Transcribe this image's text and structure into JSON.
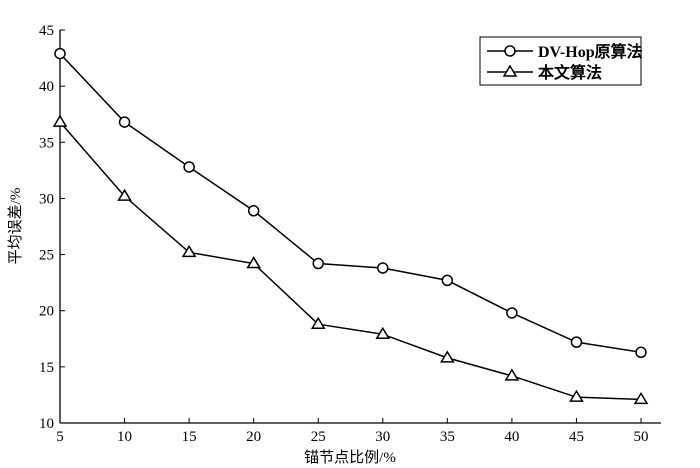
{
  "chart_data": {
    "type": "line",
    "title": "",
    "xlabel": "锚节点比例/%",
    "ylabel": "平均误差/%",
    "x": [
      5,
      10,
      15,
      20,
      25,
      30,
      35,
      40,
      45,
      50
    ],
    "xlim": [
      5,
      50
    ],
    "ylim": [
      10,
      45
    ],
    "xticks": [
      5,
      10,
      15,
      20,
      25,
      30,
      35,
      40,
      45,
      50
    ],
    "yticks": [
      10,
      15,
      20,
      25,
      30,
      35,
      40,
      45
    ],
    "grid": false,
    "legend_position": "top-right",
    "series": [
      {
        "name": "DV-Hop原算法",
        "marker": "circle",
        "values": [
          42.9,
          36.8,
          32.8,
          28.9,
          24.2,
          23.8,
          22.7,
          19.8,
          17.2,
          16.3
        ]
      },
      {
        "name": "本文算法",
        "marker": "triangle",
        "values": [
          36.8,
          30.2,
          25.2,
          24.2,
          18.8,
          17.9,
          15.8,
          14.2,
          12.3,
          12.1
        ]
      }
    ],
    "colors": {
      "line": "#000000",
      "marker_fill": "#ffffff"
    }
  }
}
